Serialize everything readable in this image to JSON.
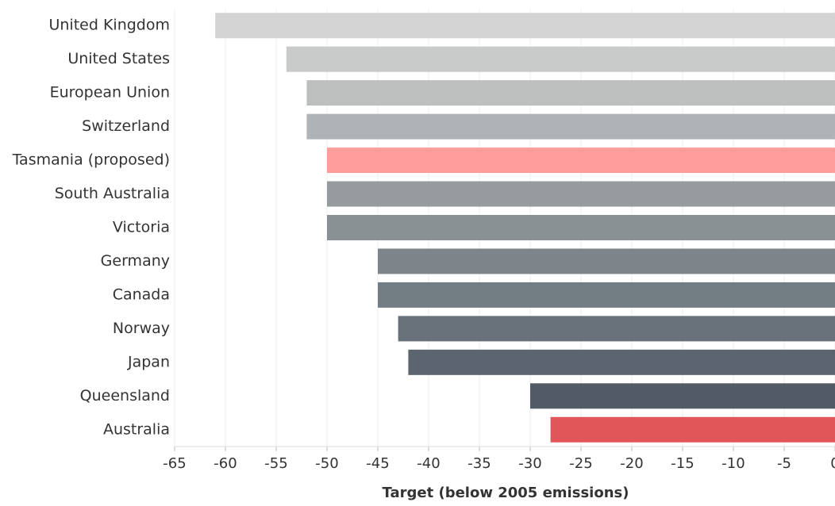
{
  "chart_data": {
    "type": "hbar",
    "x_label": "Target (below 2005 emissions)",
    "categories": [
      "United Kingdom",
      "United States",
      "European Union",
      "Switzerland",
      "Tasmania (proposed)",
      "South Australia",
      "Victoria",
      "Germany",
      "Canada",
      "Norway",
      "Japan",
      "Queensland",
      "Australia"
    ],
    "values": [
      -61,
      -54,
      -52,
      -52,
      -50,
      -50,
      -50,
      -45,
      -45,
      -43,
      -42,
      -30,
      -28
    ],
    "colors": [
      "#d4d4d4",
      "#c9caca",
      "#bdbebe",
      "#b0b3b5",
      "#ff9d9a",
      "#969b9e",
      "#8a9195",
      "#7d858b",
      "#737d84",
      "#69717b",
      "#5c6470",
      "#525a66",
      "#e15759"
    ],
    "xlim": [
      -65,
      0
    ],
    "xticks": [
      -65,
      -60,
      -55,
      -50,
      -45,
      -40,
      -35,
      -30,
      -25,
      -20,
      -15,
      -10,
      -5,
      0
    ],
    "grid": true
  }
}
